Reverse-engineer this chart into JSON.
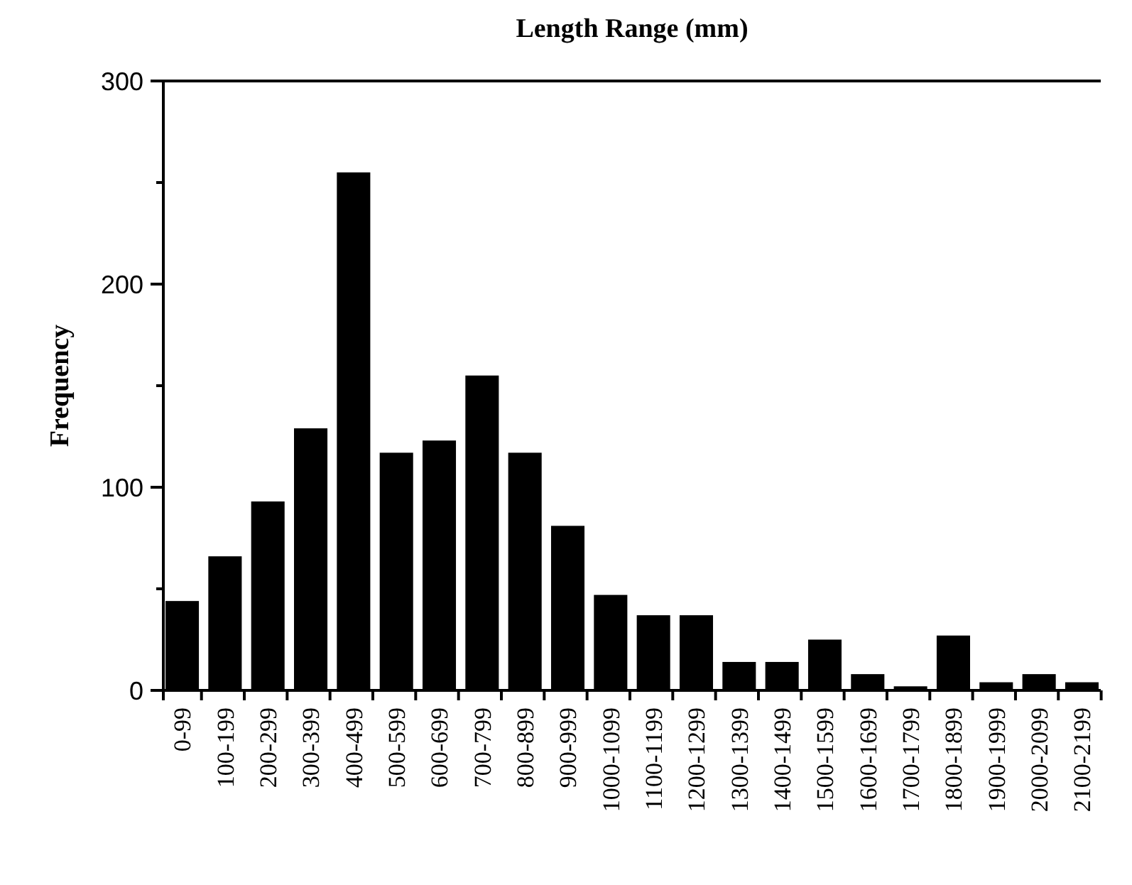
{
  "chart_data": {
    "type": "bar",
    "title": "Length Range (mm)",
    "ylabel": "Frequency",
    "categories": [
      "0-99",
      "100-199",
      "200-299",
      "300-399",
      "400-499",
      "500-599",
      "600-699",
      "700-799",
      "800-899",
      "900-999",
      "1000-1099",
      "1100-1199",
      "1200-1299",
      "1300-1399",
      "1400-1499",
      "1500-1599",
      "1600-1699",
      "1700-1799",
      "1800-1899",
      "1900-1999",
      "2000-2099",
      "2100-2199"
    ],
    "values": [
      44,
      66,
      93,
      129,
      255,
      117,
      123,
      155,
      117,
      81,
      47,
      37,
      37,
      14,
      14,
      25,
      8,
      2,
      27,
      4,
      8,
      4
    ],
    "color": "#000000",
    "ylim": [
      0,
      300
    ],
    "yticks": [
      0,
      {
        "value": 50,
        "label": null
      },
      100,
      {
        "value": 150,
        "label": null
      },
      200,
      {
        "value": 250,
        "label": null
      },
      300
    ],
    "grid": false
  }
}
